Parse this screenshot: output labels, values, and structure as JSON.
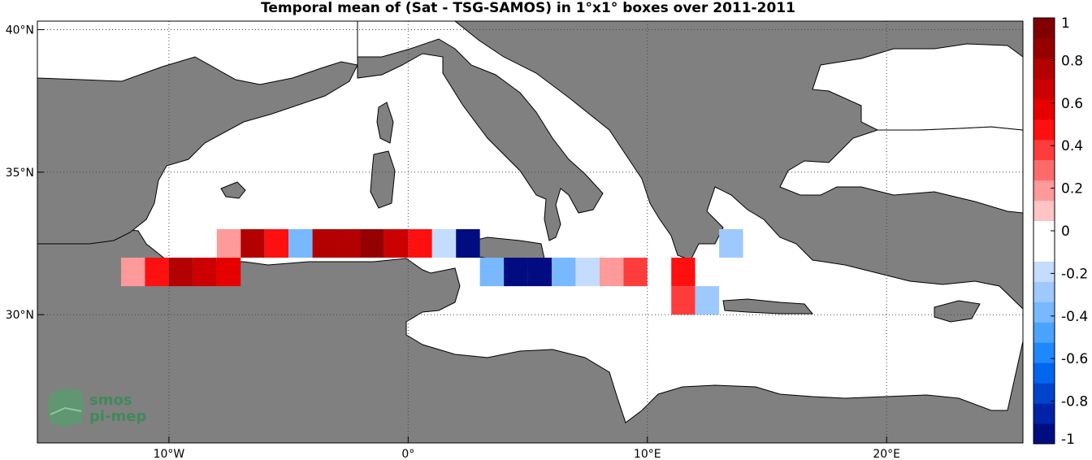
{
  "title": "Temporal mean of (Sat - TSG-SAMOS) in 1°x1° boxes over 2011-2011",
  "map": {
    "lon_range": [
      -15.5,
      25.7
    ],
    "lat_range": [
      25.5,
      40.3
    ],
    "lat_ticks": [
      {
        "value": 40,
        "label": "40°N"
      },
      {
        "value": 35,
        "label": "35°N"
      },
      {
        "value": 30,
        "label": "30°N"
      }
    ],
    "lon_ticks": [
      {
        "value": -10,
        "label": "10°W"
      },
      {
        "value": 0,
        "label": "0°"
      },
      {
        "value": 10,
        "label": "10°E"
      },
      {
        "value": 20,
        "label": "20°E"
      }
    ],
    "land_color": "#808080",
    "sea_color": "#ffffff",
    "grid": "dotted"
  },
  "chart_data": {
    "type": "heatmap",
    "title": "Temporal mean of (Sat - TSG-SAMOS) in 1°x1° boxes over 2011-2011",
    "cell_size_deg": 1,
    "cells": [
      {
        "lon": -12,
        "lat": 31,
        "value": 0.2
      },
      {
        "lon": -11,
        "lat": 31,
        "value": 0.45
      },
      {
        "lon": -10,
        "lat": 31,
        "value": 0.75
      },
      {
        "lon": -9,
        "lat": 31,
        "value": 0.65
      },
      {
        "lon": -8,
        "lat": 31,
        "value": 0.6
      },
      {
        "lon": -8,
        "lat": 32,
        "value": 0.2
      },
      {
        "lon": -7,
        "lat": 32,
        "value": 0.75
      },
      {
        "lon": -6,
        "lat": 32,
        "value": 0.45
      },
      {
        "lon": -5,
        "lat": 32,
        "value": -0.35
      },
      {
        "lon": -4,
        "lat": 32,
        "value": 0.75
      },
      {
        "lon": -3,
        "lat": 32,
        "value": 0.75
      },
      {
        "lon": -2,
        "lat": 32,
        "value": 0.9
      },
      {
        "lon": -1,
        "lat": 32,
        "value": 0.65
      },
      {
        "lon": 0,
        "lat": 32,
        "value": 0.45
      },
      {
        "lon": 1,
        "lat": 32,
        "value": -0.2
      },
      {
        "lon": 2,
        "lat": 32,
        "value": -0.95
      },
      {
        "lon": 3,
        "lat": 31,
        "value": -0.4
      },
      {
        "lon": 4,
        "lat": 31,
        "value": -0.95
      },
      {
        "lon": 5,
        "lat": 31,
        "value": -0.95
      },
      {
        "lon": 6,
        "lat": 31,
        "value": -0.4
      },
      {
        "lon": 7,
        "lat": 31,
        "value": -0.2
      },
      {
        "lon": 8,
        "lat": 31,
        "value": 0.2
      },
      {
        "lon": 9,
        "lat": 31,
        "value": 0.4
      },
      {
        "lon": 11,
        "lat": 31,
        "value": 0.45
      },
      {
        "lon": 11,
        "lat": 30,
        "value": 0.35
      },
      {
        "lon": 12,
        "lat": 30,
        "value": -0.3
      },
      {
        "lon": 13,
        "lat": 32,
        "value": -0.3
      }
    ],
    "colorbar": {
      "range": [
        -1,
        1
      ],
      "ticks": [
        "1",
        "0.8",
        "0.6",
        "0.4",
        "0.2",
        "0",
        "-0.2",
        "-0.4",
        "-0.6",
        "-0.8",
        "-1"
      ],
      "colors": [
        "#000c80",
        "#0022a6",
        "#0044cc",
        "#0066ee",
        "#1e88ff",
        "#4aa3ff",
        "#78b8ff",
        "#9ec9ff",
        "#c4dcff",
        "#ffffff",
        "#ffffff",
        "#ffc4c4",
        "#ff9a9a",
        "#ff6b6b",
        "#ff3c3c",
        "#ff1010",
        "#e60000",
        "#cc0000",
        "#b30000",
        "#960000",
        "#800000"
      ]
    }
  },
  "logo": {
    "line1": "smos",
    "line2": "pi-mep"
  }
}
